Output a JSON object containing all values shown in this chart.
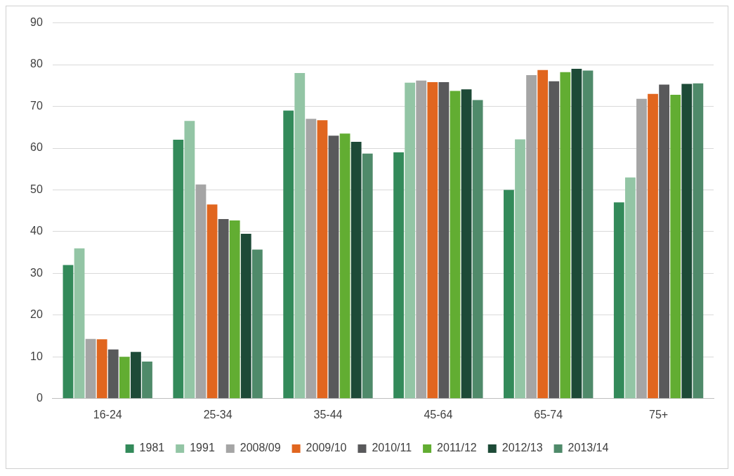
{
  "chart_data": {
    "type": "bar",
    "categories": [
      "16-24",
      "25-34",
      "35-44",
      "45-64",
      "65-74",
      "75+"
    ],
    "series": [
      {
        "name": "1981",
        "color": "#338a5a",
        "values": [
          32,
          62,
          69,
          59,
          50,
          47
        ]
      },
      {
        "name": "1991",
        "color": "#93c5a5",
        "values": [
          36,
          66.5,
          78,
          75.7,
          62.1,
          53
        ]
      },
      {
        "name": "2008/09",
        "color": "#a5a5a5",
        "values": [
          14.3,
          51.3,
          67,
          76.2,
          77.5,
          71.8
        ]
      },
      {
        "name": "2009/10",
        "color": "#e1661f",
        "values": [
          14.2,
          46.5,
          66.7,
          75.8,
          78.7,
          73
        ]
      },
      {
        "name": "2010/11",
        "color": "#59595b",
        "values": [
          11.8,
          43,
          63,
          75.8,
          76,
          75.2
        ]
      },
      {
        "name": "2011/12",
        "color": "#62ad32",
        "values": [
          10,
          42.7,
          63.5,
          73.7,
          78.2,
          72.8
        ]
      },
      {
        "name": "2012/13",
        "color": "#1d4a37",
        "values": [
          11.2,
          39.5,
          61.5,
          74.1,
          79,
          75.4
        ]
      },
      {
        "name": "2013/14",
        "color": "#4f8a6a",
        "values": [
          8.9,
          35.7,
          58.7,
          71.5,
          78.6,
          75.5
        ]
      }
    ],
    "ylim": [
      0,
      90
    ],
    "yticks": [
      0,
      10,
      20,
      30,
      40,
      50,
      60,
      70,
      80,
      90
    ],
    "grid": "y",
    "legend": "bottom"
  }
}
